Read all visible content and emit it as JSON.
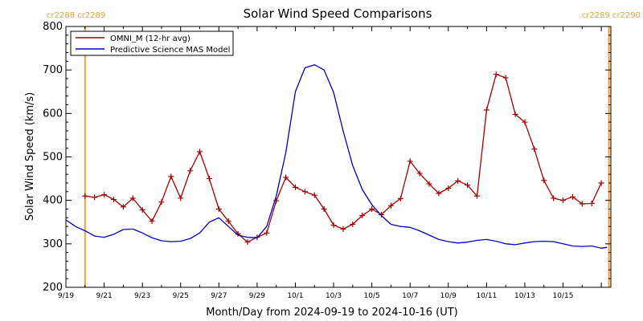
{
  "chart_data": {
    "type": "line",
    "title": "Solar Wind Speed Comparisons",
    "xlabel": "Month/Day from 2024-09-19 to 2024-10-16 (UT)",
    "ylabel": "Solar Wind Speed (km/s)",
    "ylim": [
      200,
      800
    ],
    "xlim_days": [
      0,
      28.5
    ],
    "y_ticks": [
      200,
      300,
      400,
      500,
      600,
      700,
      800
    ],
    "x_ticks": [
      {
        "d": 0,
        "label": "9/19"
      },
      {
        "d": 2,
        "label": "9/21"
      },
      {
        "d": 4,
        "label": "9/23"
      },
      {
        "d": 6,
        "label": "9/25"
      },
      {
        "d": 8,
        "label": "9/27"
      },
      {
        "d": 10,
        "label": "9/29"
      },
      {
        "d": 12,
        "label": "10/1"
      },
      {
        "d": 14,
        "label": "10/3"
      },
      {
        "d": 16,
        "label": "10/5"
      },
      {
        "d": 18,
        "label": "10/7"
      },
      {
        "d": 20,
        "label": "10/9"
      },
      {
        "d": 22,
        "label": "10/11"
      },
      {
        "d": 24,
        "label": "10/13"
      },
      {
        "d": 26,
        "label": "10/15"
      }
    ],
    "carrington_lines": [
      {
        "d": 1.0,
        "label": "cr2288 cr2289",
        "align": "left"
      },
      {
        "d": 28.4,
        "label": "cr2289 cr2290",
        "align": "right"
      }
    ],
    "legend": {
      "placement": "top-left"
    },
    "series": [
      {
        "name": "OMNI_M (12-hr avg)",
        "color": "#aa0000",
        "markers": true,
        "x": [
          1.0,
          1.5,
          2.0,
          2.5,
          3.0,
          3.5,
          4.0,
          4.5,
          5.0,
          5.5,
          6.0,
          6.5,
          7.0,
          7.5,
          8.0,
          8.5,
          9.0,
          9.5,
          10.0,
          10.5,
          11.0,
          11.5,
          12.0,
          12.5,
          13.0,
          13.5,
          14.0,
          14.5,
          15.0,
          15.5,
          16.0,
          16.5,
          17.0,
          17.5,
          18.0,
          18.5,
          19.0,
          19.5,
          20.0,
          20.5,
          21.0,
          21.5,
          22.0,
          22.5,
          23.0,
          23.5,
          24.0,
          24.5,
          25.0,
          25.5,
          26.0,
          26.5,
          27.0,
          27.5,
          28.0
        ],
        "y": [
          410,
          407,
          413,
          402,
          385,
          405,
          378,
          352,
          396,
          455,
          405,
          468,
          512,
          450,
          380,
          352,
          323,
          304,
          315,
          325,
          399,
          453,
          430,
          420,
          412,
          380,
          343,
          334,
          345,
          365,
          380,
          367,
          388,
          404,
          490,
          462,
          438,
          416,
          428,
          445,
          435,
          410,
          608,
          690,
          682,
          598,
          580,
          518,
          446,
          405,
          400,
          408,
          392,
          393,
          440
        ]
      },
      {
        "name": "Predictive Science MAS Model",
        "color": "#0000cc",
        "markers": false,
        "x": [
          0.0,
          0.5,
          1.0,
          1.5,
          2.0,
          2.5,
          3.0,
          3.5,
          4.0,
          4.5,
          5.0,
          5.5,
          6.0,
          6.5,
          7.0,
          7.5,
          8.0,
          8.5,
          9.0,
          9.5,
          10.0,
          10.5,
          11.0,
          11.5,
          12.0,
          12.5,
          13.0,
          13.5,
          14.0,
          14.5,
          15.0,
          15.5,
          16.0,
          16.5,
          17.0,
          17.5,
          18.0,
          18.5,
          19.0,
          19.5,
          20.0,
          20.5,
          21.0,
          21.5,
          22.0,
          22.5,
          23.0,
          23.5,
          24.0,
          24.5,
          25.0,
          25.5,
          26.0,
          26.5,
          27.0,
          27.5,
          28.0,
          28.3
        ],
        "y": [
          355,
          340,
          330,
          318,
          315,
          322,
          333,
          334,
          325,
          314,
          307,
          305,
          306,
          312,
          325,
          350,
          360,
          340,
          320,
          315,
          314,
          340,
          410,
          510,
          650,
          705,
          712,
          700,
          648,
          560,
          480,
          425,
          390,
          365,
          345,
          340,
          338,
          330,
          320,
          310,
          305,
          302,
          304,
          308,
          310,
          306,
          300,
          298,
          302,
          305,
          306,
          305,
          300,
          295,
          294,
          295,
          290,
          292
        ]
      }
    ]
  }
}
